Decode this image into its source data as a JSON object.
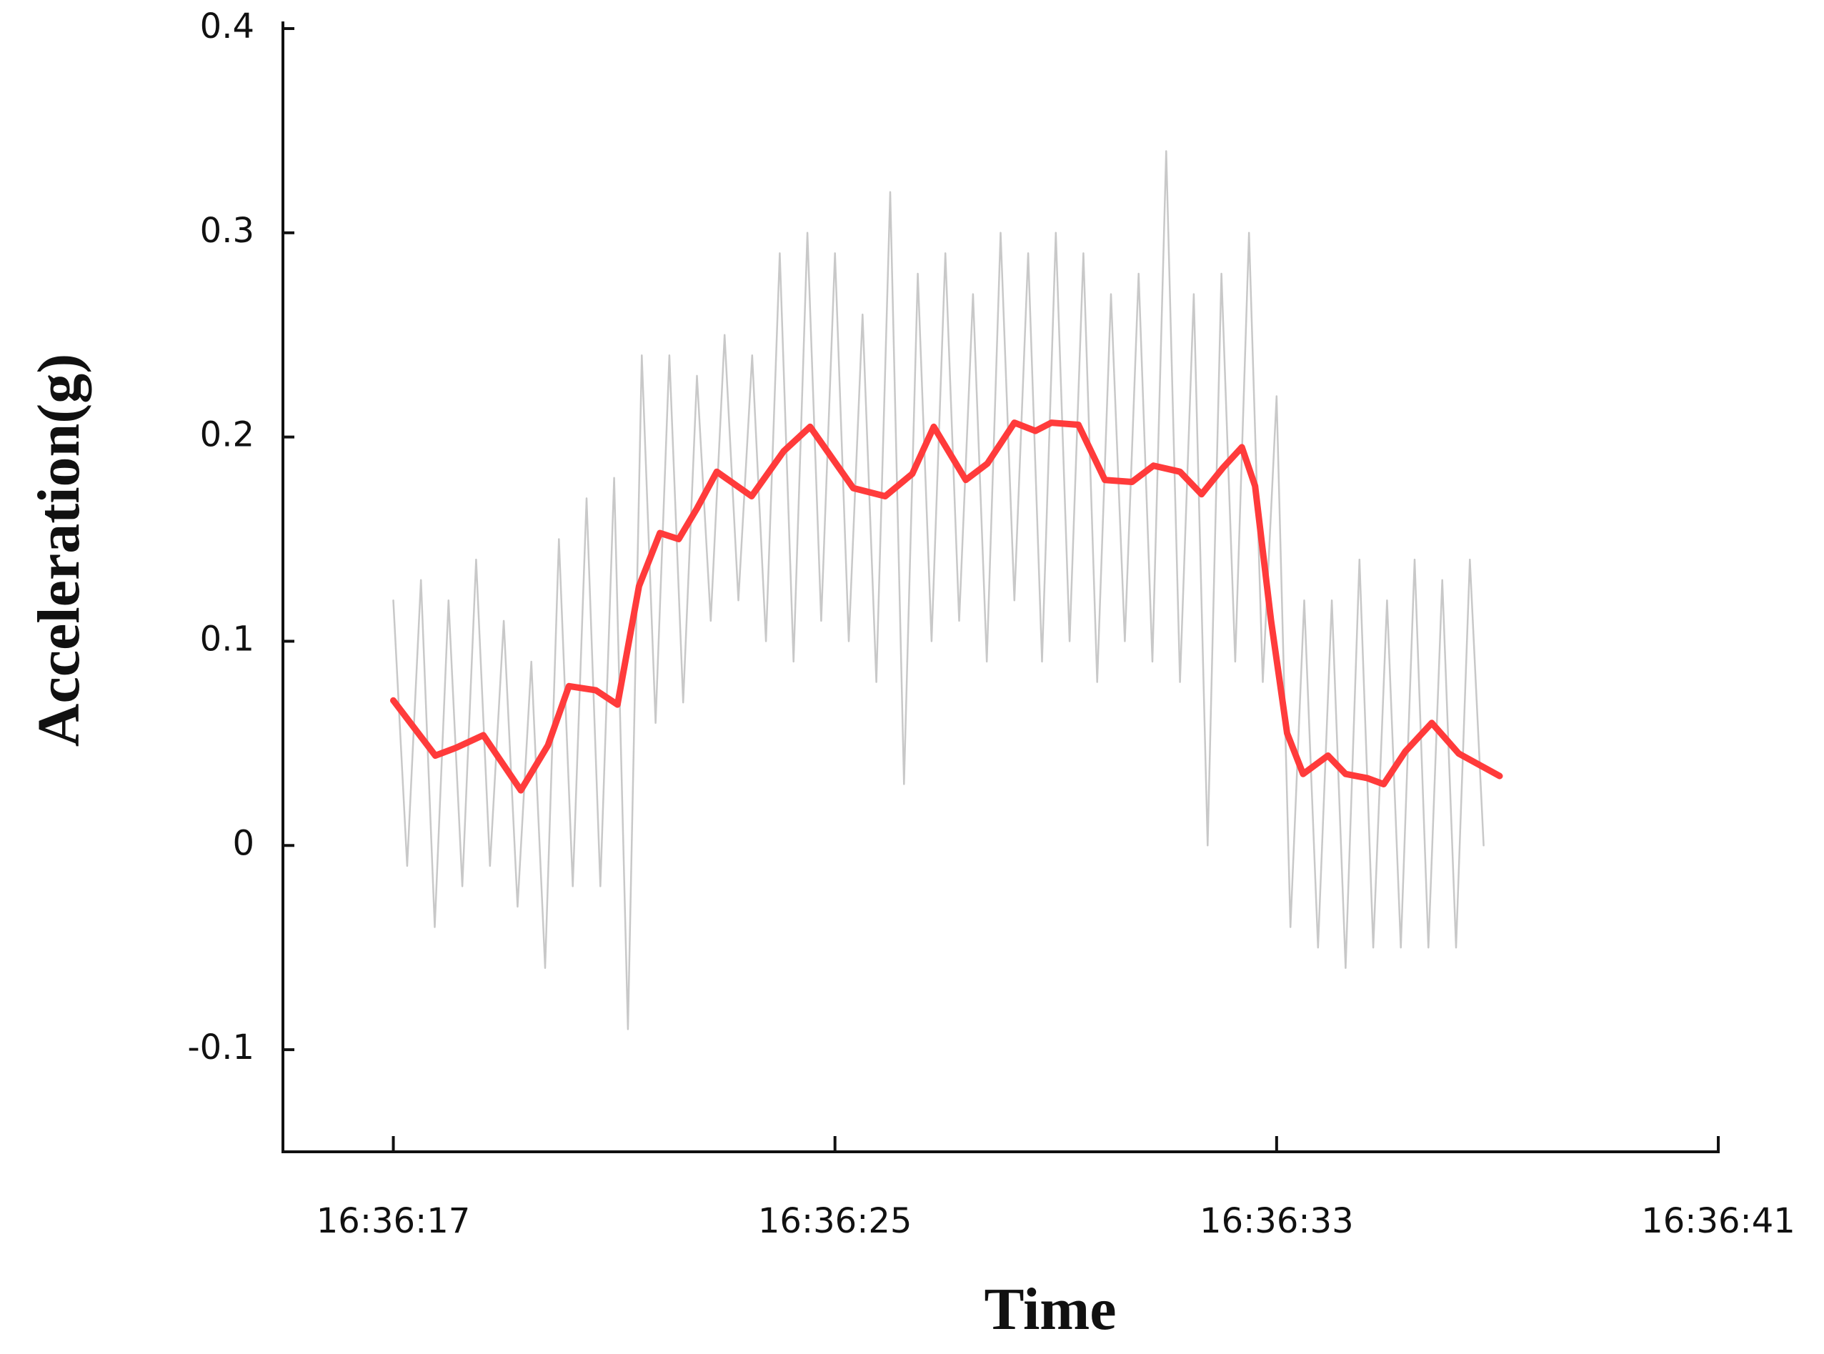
{
  "chart_data": {
    "type": "line",
    "xlabel": "Time",
    "ylabel": "Acceleration(g)",
    "xlim": [
      15,
      41
    ],
    "ylim": [
      -0.15,
      0.4
    ],
    "xticks": [
      {
        "value": 17,
        "label": "16:36:17"
      },
      {
        "value": 25,
        "label": "16:36:25"
      },
      {
        "value": 33,
        "label": "16:36:33"
      },
      {
        "value": 41,
        "label": "16:36:41"
      }
    ],
    "yticks": [
      {
        "value": -0.1,
        "label": "-0.1"
      },
      0,
      0.1,
      0.2,
      0.3,
      0.4
    ],
    "series": [
      {
        "color": "#c8c8c8",
        "x": [
          17,
          17.25,
          17.5,
          17.75,
          18,
          18.25,
          18.5,
          18.75,
          19,
          19.25,
          19.5,
          19.75,
          20,
          20.25,
          20.5,
          20.75,
          21,
          21.25,
          21.5,
          21.75,
          22,
          22.25,
          22.5,
          22.75,
          23,
          23.25,
          23.5,
          23.75,
          24,
          24.25,
          24.5,
          24.75,
          25,
          25.25,
          25.5,
          25.75,
          26,
          26.25,
          26.5,
          26.75,
          27,
          27.25,
          27.5,
          27.75,
          28,
          28.25,
          28.5,
          28.75,
          29,
          29.25,
          29.5,
          29.75,
          30,
          30.25,
          30.5,
          30.75,
          31,
          31.25,
          31.5,
          31.75,
          32,
          32.25,
          32.5,
          32.75,
          33,
          33.25,
          33.5,
          33.75,
          34,
          34.25,
          34.5,
          34.75,
          35,
          35.25,
          35.5,
          35.75,
          36,
          36.25,
          36.5,
          36.75
        ],
        "values": [
          0.12,
          -0.01,
          0.13,
          -0.04,
          0.12,
          -0.02,
          0.14,
          -0.01,
          0.11,
          -0.03,
          0.09,
          -0.06,
          0.15,
          -0.02,
          0.17,
          -0.02,
          0.18,
          -0.09,
          0.24,
          0.06,
          0.24,
          0.07,
          0.23,
          0.11,
          0.25,
          0.12,
          0.24,
          0.1,
          0.29,
          0.09,
          0.3,
          0.11,
          0.29,
          0.1,
          0.26,
          0.08,
          0.32,
          0.03,
          0.28,
          0.1,
          0.29,
          0.11,
          0.27,
          0.09,
          0.3,
          0.12,
          0.29,
          0.09,
          0.3,
          0.1,
          0.29,
          0.08,
          0.27,
          0.1,
          0.28,
          0.09,
          0.34,
          0.08,
          0.27,
          0.0,
          0.28,
          0.09,
          0.3,
          0.08,
          0.22,
          -0.04,
          0.12,
          -0.05,
          0.12,
          -0.06,
          0.14,
          -0.05,
          0.12,
          -0.05,
          0.14,
          -0.05,
          0.13,
          -0.05,
          0.14,
          0.0
        ]
      },
      {
        "color": "#ff3b3b",
        "x": [
          17,
          17.76,
          18.15,
          18.63,
          19.31,
          19.8,
          20.18,
          20.67,
          21.06,
          21.45,
          21.83,
          22.17,
          22.5,
          22.86,
          23.49,
          24.07,
          24.55,
          25.33,
          25.91,
          26.4,
          26.79,
          27.37,
          27.76,
          28.25,
          28.63,
          28.92,
          29.41,
          29.89,
          30.38,
          30.77,
          31.25,
          31.64,
          32.03,
          32.37,
          32.61,
          32.9,
          33.19,
          33.48,
          33.93,
          34.25,
          34.64,
          34.94,
          35.33,
          35.81,
          36.3,
          37.04
        ],
        "values": [
          0.071,
          0.044,
          0.048,
          0.054,
          0.027,
          0.049,
          0.078,
          0.076,
          0.069,
          0.127,
          0.153,
          0.15,
          0.165,
          0.183,
          0.171,
          0.193,
          0.205,
          0.175,
          0.171,
          0.182,
          0.205,
          0.179,
          0.187,
          0.207,
          0.203,
          0.207,
          0.206,
          0.179,
          0.178,
          0.186,
          0.183,
          0.172,
          0.185,
          0.195,
          0.176,
          0.11,
          0.055,
          0.035,
          0.044,
          0.035,
          0.033,
          0.03,
          0.046,
          0.06,
          0.045,
          0.034
        ]
      }
    ]
  }
}
